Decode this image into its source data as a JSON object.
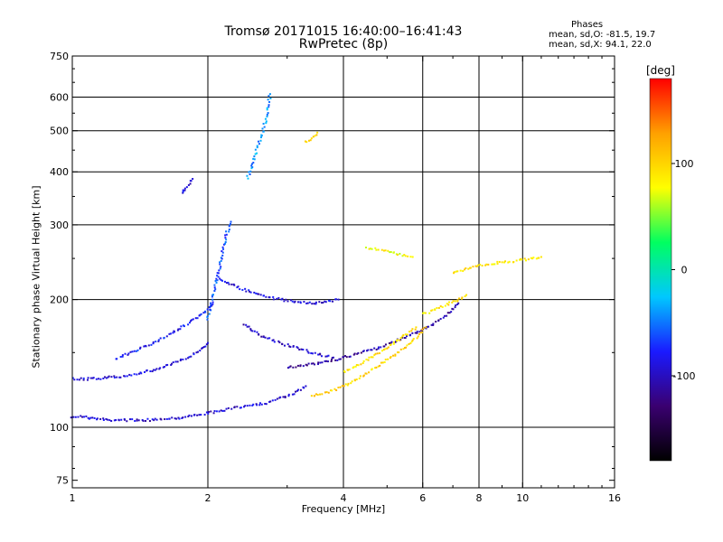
{
  "chart_data": {
    "type": "scatter",
    "title": "Tromsø 20171015 16:40:00–16:41:43",
    "subtitle": "RwPretec (8p)",
    "xlabel": "Frequency [MHz]",
    "ylabel": "Stationary phase Virtual Height [km]",
    "x_scale": "log",
    "y_scale": "log",
    "xlim": [
      1,
      16
    ],
    "ylim": [
      72,
      750
    ],
    "x_ticks": [
      1,
      2,
      4,
      6,
      8,
      10,
      16
    ],
    "y_ticks": [
      75,
      100,
      200,
      300,
      400,
      500,
      600,
      750
    ],
    "grid_x": [
      2,
      4,
      6,
      8,
      10
    ],
    "grid_y": [
      100,
      200,
      300,
      400,
      500,
      600
    ],
    "grid": true,
    "colorbar": {
      "label": "[deg]",
      "range": [
        -180,
        180
      ],
      "ticks": [
        100,
        0,
        -100
      ],
      "colors": [
        "#000000",
        "#3a0070",
        "#1a1aff",
        "#00c8ff",
        "#00ff60",
        "#ffff00",
        "#ffa000",
        "#ff0000"
      ]
    },
    "phases": {
      "header": "Phases",
      "o_line": "mean, sd,O: -81.5, 19.7",
      "x_line": "mean, sd,X:  94.1, 22.0"
    },
    "traces": [
      {
        "x": [
          1.0,
          1.05,
          1.1,
          1.2,
          1.3,
          1.4,
          1.5,
          1.6,
          1.7,
          1.8,
          1.9,
          2.0,
          2.1,
          2.3,
          2.5,
          2.7,
          2.9,
          3.1,
          3.3
        ],
        "y": [
          106,
          106,
          105,
          104,
          104,
          104,
          104,
          105,
          105,
          106,
          107,
          108,
          109,
          111,
          113,
          114,
          117,
          120,
          125
        ],
        "phase": -95
      },
      {
        "x": [
          1.0,
          1.1,
          1.2,
          1.3,
          1.4,
          1.5,
          1.6,
          1.7,
          1.8,
          1.9,
          2.0
        ],
        "y": [
          130,
          130,
          131,
          132,
          134,
          136,
          139,
          142,
          146,
          151,
          158
        ],
        "phase": -90
      },
      {
        "x": [
          1.25,
          1.35,
          1.45,
          1.55,
          1.65,
          1.75,
          1.85,
          1.95,
          2.05
        ],
        "y": [
          145,
          150,
          155,
          160,
          166,
          172,
          178,
          186,
          195
        ],
        "phase": -80
      },
      {
        "x": [
          2.0,
          2.05,
          2.1,
          2.15,
          2.2,
          2.25
        ],
        "y": [
          180,
          200,
          225,
          255,
          285,
          305
        ],
        "phase": -60
      },
      {
        "x": [
          2.45,
          2.5,
          2.55,
          2.6,
          2.65,
          2.7,
          2.75
        ],
        "y": [
          385,
          410,
          440,
          470,
          500,
          540,
          610
        ],
        "phase": -40
      },
      {
        "x": [
          1.75,
          1.8,
          1.85
        ],
        "y": [
          355,
          370,
          385
        ],
        "phase": -90
      },
      {
        "x": [
          2.1,
          2.3,
          2.5,
          2.7,
          2.9,
          3.1,
          3.3,
          3.5,
          3.7,
          3.9
        ],
        "y": [
          225,
          215,
          208,
          203,
          200,
          198,
          197,
          196,
          198,
          200
        ],
        "phase": -90
      },
      {
        "x": [
          2.4,
          2.6,
          2.8,
          3.0,
          3.2,
          3.4,
          3.6,
          3.8
        ],
        "y": [
          175,
          165,
          160,
          156,
          153,
          150,
          148,
          146
        ],
        "phase": -100
      },
      {
        "x": [
          3.0,
          3.3,
          3.6,
          3.9,
          4.2,
          4.5,
          4.8,
          5.1,
          5.4,
          5.7,
          6.0,
          6.3,
          6.6,
          6.9,
          7.2
        ],
        "y": [
          138,
          140,
          142,
          145,
          148,
          151,
          154,
          158,
          162,
          166,
          170,
          175,
          180,
          188,
          196
        ],
        "phase": -110
      },
      {
        "x": [
          3.4,
          3.7,
          4.0,
          4.3,
          4.6,
          4.9,
          5.2,
          5.5,
          5.8,
          6.1
        ],
        "y": [
          118,
          121,
          125,
          130,
          136,
          142,
          148,
          155,
          163,
          172
        ],
        "phase": 100
      },
      {
        "x": [
          4.0,
          4.3,
          4.6,
          4.9,
          5.2,
          5.5,
          5.8
        ],
        "y": [
          135,
          140,
          146,
          152,
          158,
          165,
          172
        ],
        "phase": 95
      },
      {
        "x": [
          6.0,
          6.3,
          6.6,
          6.9,
          7.2,
          7.5
        ],
        "y": [
          185,
          188,
          192,
          196,
          200,
          205
        ],
        "phase": 90
      },
      {
        "x": [
          4.5,
          4.8,
          5.1,
          5.4,
          5.7
        ],
        "y": [
          265,
          262,
          258,
          255,
          252
        ],
        "phase": 80
      },
      {
        "x": [
          7.0,
          7.5,
          8.0,
          8.5,
          9.0,
          9.5,
          10.0,
          10.5,
          11.0
        ],
        "y": [
          230,
          236,
          240,
          242,
          245,
          246,
          248,
          250,
          252
        ],
        "phase": 90
      },
      {
        "x": [
          3.3,
          3.4,
          3.5
        ],
        "y": [
          470,
          480,
          495
        ],
        "phase": 95
      }
    ]
  }
}
